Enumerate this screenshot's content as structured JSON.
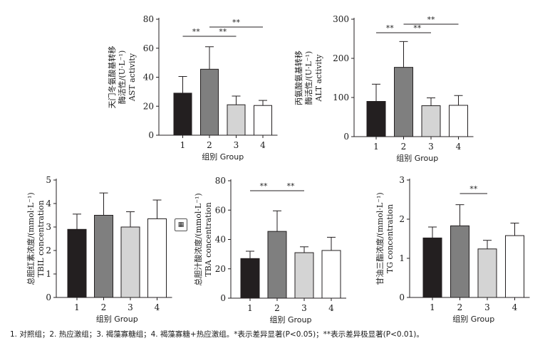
{
  "footnote": {
    "groups": "1. 对照组；2. 热应激组；3. 褐藻寡糖组；4. 褐藻寡糖+热应激组。",
    "sig": "*表示差异显著(P<0.05)；**表示差异极显著(P<0.01)。"
  },
  "colors": {
    "bar_fills": [
      "#231f20",
      "#7f7f7f",
      "#d4d4d4",
      "#ffffff"
    ],
    "stroke": "#231f20"
  },
  "icons": {
    "chart_button": "chart-grid-icon"
  },
  "chart_data": [
    {
      "id": "ast",
      "type": "bar",
      "categories": [
        "1",
        "2",
        "3",
        "4"
      ],
      "values": [
        29,
        45.5,
        21,
        20.5
      ],
      "errors": [
        11.5,
        15.5,
        6,
        3.5
      ],
      "ylim": [
        0,
        80
      ],
      "yticks": [
        0,
        20,
        40,
        60,
        80
      ],
      "xlabel": "组别 Group",
      "ylabel_lines": [
        "天门冬氨酸基转移",
        "酶活性/(U·L⁻¹)",
        "AST activity"
      ],
      "significance": [
        {
          "from": 1,
          "to": 2,
          "label": "**"
        },
        {
          "from": 2,
          "to": 3,
          "label": "**"
        },
        {
          "from": 2,
          "to": 4,
          "label": "**"
        }
      ]
    },
    {
      "id": "alt",
      "type": "bar",
      "categories": [
        "1",
        "2",
        "3",
        "4"
      ],
      "values": [
        90,
        177,
        79,
        80
      ],
      "errors": [
        44,
        66,
        20,
        25
      ],
      "ylim": [
        0,
        300
      ],
      "yticks": [
        0,
        100,
        200,
        300
      ],
      "xlabel": "组别 Group",
      "ylabel_lines": [
        "丙氨酸氨基转移",
        "酶活性/(U·L⁻¹)",
        "ALT activity"
      ],
      "significance": [
        {
          "from": 1,
          "to": 2,
          "label": "**"
        },
        {
          "from": 2,
          "to": 3,
          "label": "**"
        },
        {
          "from": 2,
          "to": 4,
          "label": "**"
        }
      ]
    },
    {
      "id": "tbil",
      "type": "bar",
      "categories": [
        "1",
        "2",
        "3",
        "4"
      ],
      "values": [
        2.9,
        3.5,
        3.0,
        3.35
      ],
      "errors": [
        0.65,
        0.95,
        0.65,
        0.8
      ],
      "ylim": [
        0,
        5
      ],
      "yticks": [
        0,
        1,
        2,
        3,
        4,
        5
      ],
      "xlabel": "组别 Group",
      "ylabel_lines": [
        "总胆红素浓度/(mmol·L⁻¹)",
        "TBIL concentration"
      ],
      "significance": []
    },
    {
      "id": "tba",
      "type": "bar",
      "categories": [
        "1",
        "2",
        "3",
        "4"
      ],
      "values": [
        27,
        45.5,
        31,
        32.5
      ],
      "errors": [
        5,
        14,
        4,
        9
      ],
      "ylim": [
        0,
        80
      ],
      "yticks": [
        0,
        20,
        40,
        60,
        80
      ],
      "xlabel": "组别 Group",
      "ylabel_lines": [
        "总胆汁酸浓度/(mmol·L⁻¹)",
        "TBA concentration"
      ],
      "significance": [
        {
          "from": 1,
          "to": 2,
          "label": "**"
        },
        {
          "from": 2,
          "to": 3,
          "label": "**"
        }
      ]
    },
    {
      "id": "tg",
      "type": "bar",
      "categories": [
        "1",
        "2",
        "3",
        "4"
      ],
      "values": [
        1.52,
        1.83,
        1.24,
        1.58
      ],
      "errors": [
        0.28,
        0.54,
        0.22,
        0.32
      ],
      "ylim": [
        0,
        3
      ],
      "yticks": [
        0,
        1,
        2,
        3
      ],
      "xlabel": "组别 Group",
      "ylabel_lines": [
        "甘油三酯浓度/(mmol·L⁻¹)",
        "TG concentration"
      ],
      "significance": [
        {
          "from": 2,
          "to": 3,
          "label": "**"
        }
      ]
    }
  ]
}
